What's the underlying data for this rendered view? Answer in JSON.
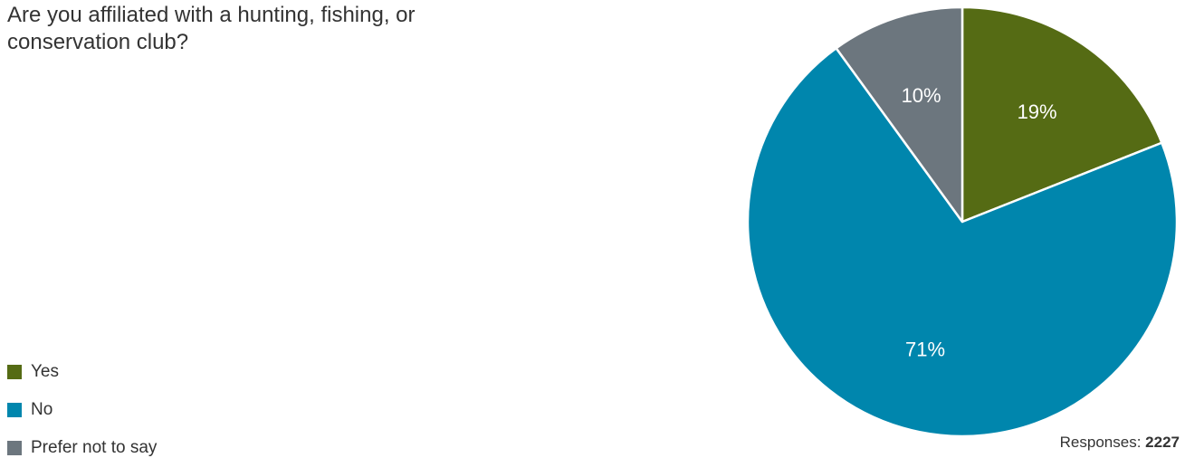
{
  "chart_data": {
    "type": "pie",
    "title": "Are you affiliated with a hunting, fishing, or conservation club?",
    "categories": [
      "Yes",
      "No",
      "Prefer not to say"
    ],
    "values": [
      19,
      71,
      10
    ],
    "value_labels": [
      "19%",
      "71%",
      "10%"
    ],
    "colors": [
      "#556b14",
      "#0086ad",
      "#6c767e"
    ],
    "legend_position": "bottom-left",
    "responses_label": "Responses:",
    "responses_count": "2227"
  }
}
